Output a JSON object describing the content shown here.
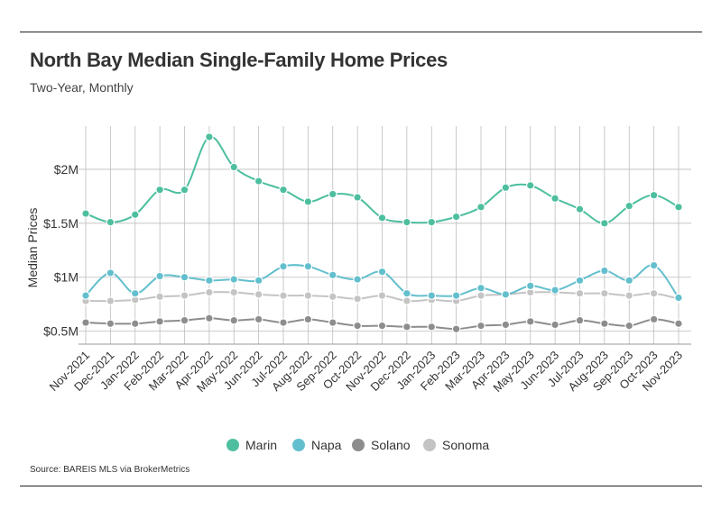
{
  "header": {
    "title": "North Bay Median Single-Family Home Prices",
    "subtitle": "Two-Year, Monthly"
  },
  "footer": {
    "source": "Source:  BAREIS MLS via BrokerMetrics"
  },
  "colors": {
    "Marin": "#4dbf9f",
    "Napa": "#63bfcd",
    "Solano": "#8d8d8d",
    "Sonoma": "#c4c4c4",
    "grid": "#bdbdbd",
    "axis": "#999999"
  },
  "chart_data": {
    "type": "line",
    "ylabel": "Median Prices",
    "xlabel": "",
    "ylim": [
      380000,
      2400000
    ],
    "yticks": [
      500000,
      1000000,
      1500000,
      2000000
    ],
    "ytick_labels": [
      "$0.5M",
      "$1M",
      "$1.5M",
      "$2M"
    ],
    "grid": true,
    "legend_position": "bottom",
    "categories": [
      "Nov-2021",
      "Dec-2021",
      "Jan-2022",
      "Feb-2022",
      "Mar-2022",
      "Apr-2022",
      "May-2022",
      "Jun-2022",
      "Jul-2022",
      "Aug-2022",
      "Sep-2022",
      "Oct-2022",
      "Nov-2022",
      "Dec-2022",
      "Jan-2023",
      "Feb-2023",
      "Mar-2023",
      "Apr-2023",
      "May-2023",
      "Jun-2023",
      "Jul-2023",
      "Aug-2023",
      "Sep-2023",
      "Oct-2023",
      "Nov-2023"
    ],
    "series": [
      {
        "name": "Marin",
        "values": [
          1590000,
          1510000,
          1580000,
          1810000,
          1810000,
          2300000,
          2020000,
          1890000,
          1810000,
          1700000,
          1770000,
          1740000,
          1550000,
          1510000,
          1510000,
          1560000,
          1650000,
          1830000,
          1850000,
          1730000,
          1630000,
          1500000,
          1660000,
          1760000,
          1650000
        ]
      },
      {
        "name": "Napa",
        "values": [
          830000,
          1040000,
          850000,
          1010000,
          1000000,
          970000,
          980000,
          970000,
          1100000,
          1100000,
          1020000,
          980000,
          1050000,
          850000,
          830000,
          830000,
          900000,
          840000,
          920000,
          880000,
          970000,
          1060000,
          970000,
          1110000,
          810000
        ]
      },
      {
        "name": "Solano",
        "values": [
          580000,
          570000,
          570000,
          590000,
          600000,
          620000,
          600000,
          610000,
          580000,
          610000,
          580000,
          550000,
          550000,
          540000,
          540000,
          520000,
          550000,
          560000,
          590000,
          560000,
          600000,
          570000,
          550000,
          610000,
          570000
        ]
      },
      {
        "name": "Sonoma",
        "values": [
          780000,
          780000,
          790000,
          820000,
          830000,
          860000,
          860000,
          840000,
          830000,
          830000,
          820000,
          800000,
          830000,
          780000,
          790000,
          780000,
          830000,
          840000,
          860000,
          860000,
          850000,
          850000,
          830000,
          850000,
          800000
        ]
      }
    ]
  }
}
